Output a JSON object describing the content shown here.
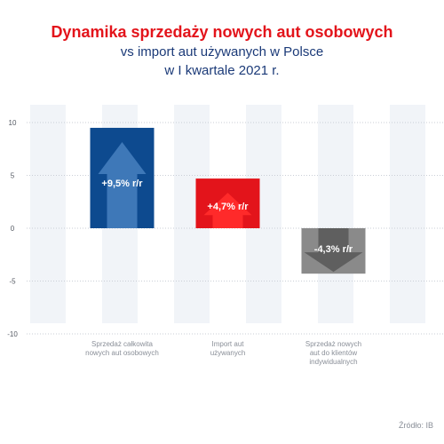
{
  "chart_data": {
    "type": "bar",
    "title": "Dynamika sprzedaży nowych aut osobowych",
    "subtitle_lines": [
      "vs import aut używanych w Polsce",
      "w I kwartale 2021 r."
    ],
    "categories": [
      [
        "Sprzedaż całkowita",
        "nowych aut osobowych"
      ],
      [
        "Import aut",
        "używanych"
      ],
      [
        "Sprzedaż nowych",
        "aut do klientów",
        "indywidualnych"
      ]
    ],
    "values": [
      9.5,
      4.7,
      -4.3
    ],
    "value_labels": [
      "+9,5% r/r",
      "+4,7% r/r",
      "-4,3% r/r"
    ],
    "bar_colors": [
      "#0d4a8f",
      "#e3141b",
      "#8a8a8a"
    ],
    "arrow_colors": [
      "#3e78b8",
      "#ff2a2a",
      "#5f5f5f"
    ],
    "ylim": [
      -10,
      10
    ],
    "yticks": [
      10,
      5,
      0,
      -5,
      -10
    ],
    "grid": true,
    "xlabel": "",
    "ylabel": ""
  },
  "source_text": "Źródło: IB"
}
